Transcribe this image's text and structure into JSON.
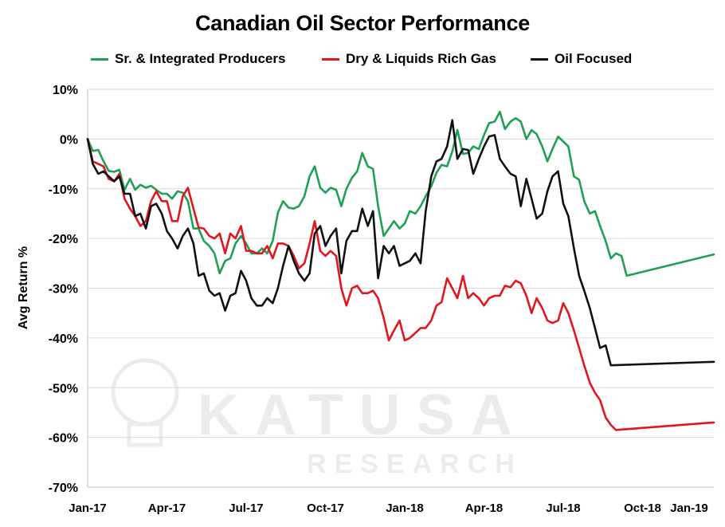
{
  "chart_data": {
    "type": "line",
    "title": "Canadian Oil Sector Performance",
    "ylabel": "Avg Return %",
    "xlabel": "",
    "ylim": [
      -70,
      10
    ],
    "yticks": [
      "10%",
      "0%",
      "-10%",
      "-20%",
      "-30%",
      "-40%",
      "-50%",
      "-60%",
      "-70%"
    ],
    "xticks": [
      "Jan-17",
      "Apr-17",
      "Jul-17",
      "Oct-17",
      "Jan-18",
      "Apr-18",
      "Jul-18",
      "Oct-18",
      "Jan-19"
    ],
    "grid": true,
    "legend_position": "top",
    "watermark": {
      "line1": "KATUSA",
      "line2": "RESEARCH"
    },
    "series": [
      {
        "name": "Sr. & Integrated Producers",
        "color": "#1fa055",
        "values": [
          [
            0,
            0
          ],
          [
            0.13,
            -2.4
          ],
          [
            0.27,
            -2.2
          ],
          [
            0.4,
            -4.5
          ],
          [
            0.53,
            -6.4
          ],
          [
            0.67,
            -6.6
          ],
          [
            0.8,
            -6.2
          ],
          [
            0.93,
            -10.2
          ],
          [
            1.07,
            -8
          ],
          [
            1.2,
            -10.2
          ],
          [
            1.33,
            -9.2
          ],
          [
            1.47,
            -9.8
          ],
          [
            1.6,
            -9.4
          ],
          [
            1.73,
            -10.2
          ],
          [
            1.87,
            -11
          ],
          [
            2,
            -11
          ],
          [
            2.13,
            -12
          ],
          [
            2.27,
            -10.5
          ],
          [
            2.4,
            -10.8
          ],
          [
            2.53,
            -12.5
          ],
          [
            2.67,
            -18
          ],
          [
            2.8,
            -18
          ],
          [
            2.93,
            -20.5
          ],
          [
            3.07,
            -21.5
          ],
          [
            3.2,
            -23
          ],
          [
            3.33,
            -27
          ],
          [
            3.47,
            -24.5
          ],
          [
            3.6,
            -24
          ],
          [
            3.73,
            -21
          ],
          [
            3.87,
            -19.5
          ],
          [
            4,
            -21
          ],
          [
            4.13,
            -23
          ],
          [
            4.27,
            -23
          ],
          [
            4.4,
            -22
          ],
          [
            4.53,
            -23
          ],
          [
            4.67,
            -20.5
          ],
          [
            4.8,
            -14.8
          ],
          [
            4.93,
            -12.5
          ],
          [
            5.07,
            -13.8
          ],
          [
            5.2,
            -14
          ],
          [
            5.33,
            -13.5
          ],
          [
            5.47,
            -11.5
          ],
          [
            5.6,
            -7.5
          ],
          [
            5.73,
            -5.5
          ],
          [
            5.87,
            -9.8
          ],
          [
            6,
            -10.8
          ],
          [
            6.13,
            -9.8
          ],
          [
            6.27,
            -10.2
          ],
          [
            6.4,
            -13.5
          ],
          [
            6.53,
            -10
          ],
          [
            6.67,
            -7.8
          ],
          [
            6.8,
            -6.5
          ],
          [
            6.93,
            -2.8
          ],
          [
            7.07,
            -5.5
          ],
          [
            7.2,
            -6
          ],
          [
            7.33,
            -13.5
          ],
          [
            7.47,
            -19.5
          ],
          [
            7.6,
            -18
          ],
          [
            7.73,
            -16.5
          ],
          [
            7.87,
            -18
          ],
          [
            8,
            -17
          ],
          [
            8.13,
            -14.5
          ],
          [
            8.27,
            -15
          ],
          [
            8.4,
            -13.5
          ],
          [
            8.53,
            -11.5
          ],
          [
            8.67,
            -9.5
          ],
          [
            8.8,
            -6.8
          ],
          [
            8.93,
            -5.2
          ],
          [
            9.07,
            -5.5
          ],
          [
            9.2,
            -2.5
          ],
          [
            9.33,
            1.8
          ],
          [
            9.47,
            -3
          ],
          [
            9.6,
            -2.8
          ],
          [
            9.73,
            -1.5
          ],
          [
            9.87,
            -2
          ],
          [
            10,
            0.8
          ],
          [
            10.13,
            3.2
          ],
          [
            10.27,
            3.5
          ],
          [
            10.4,
            5.5
          ],
          [
            10.53,
            2
          ],
          [
            10.67,
            3.5
          ],
          [
            10.8,
            4.2
          ],
          [
            10.93,
            3.5
          ],
          [
            11.07,
            0
          ],
          [
            11.2,
            1.8
          ],
          [
            11.33,
            1
          ],
          [
            11.47,
            -1.5
          ],
          [
            11.6,
            -4.5
          ],
          [
            11.73,
            -2
          ],
          [
            11.87,
            0.5
          ],
          [
            12,
            -0.5
          ],
          [
            12.13,
            -1.5
          ],
          [
            12.27,
            -7.5
          ],
          [
            12.4,
            -8.2
          ],
          [
            12.53,
            -12.5
          ],
          [
            12.67,
            -15
          ],
          [
            12.8,
            -14.5
          ],
          [
            12.93,
            -17.5
          ],
          [
            13.07,
            -20.5
          ],
          [
            13.2,
            -24
          ],
          [
            13.33,
            -23
          ],
          [
            13.47,
            -23.5
          ],
          [
            13.6,
            -27.5
          ],
          [
            15.8,
            -23.2
          ]
        ]
      },
      {
        "name": "Dry & Liquids Rich Gas",
        "color": "#e1161e",
        "values": [
          [
            0,
            0
          ],
          [
            0.13,
            -4.5
          ],
          [
            0.27,
            -5
          ],
          [
            0.4,
            -5.5
          ],
          [
            0.53,
            -8
          ],
          [
            0.67,
            -8.5
          ],
          [
            0.8,
            -7
          ],
          [
            0.93,
            -12
          ],
          [
            1.07,
            -14
          ],
          [
            1.2,
            -15.5
          ],
          [
            1.33,
            -17.5
          ],
          [
            1.47,
            -16.5
          ],
          [
            1.6,
            -12.5
          ],
          [
            1.73,
            -10.5
          ],
          [
            1.87,
            -12.5
          ],
          [
            2,
            -12.5
          ],
          [
            2.13,
            -16.5
          ],
          [
            2.27,
            -16.5
          ],
          [
            2.4,
            -11.5
          ],
          [
            2.53,
            -9.8
          ],
          [
            2.67,
            -14
          ],
          [
            2.8,
            -17.8
          ],
          [
            2.93,
            -18
          ],
          [
            3.07,
            -19.5
          ],
          [
            3.2,
            -20
          ],
          [
            3.33,
            -19
          ],
          [
            3.47,
            -23
          ],
          [
            3.6,
            -19
          ],
          [
            3.73,
            -20
          ],
          [
            3.87,
            -17.5
          ],
          [
            4,
            -22.5
          ],
          [
            4.13,
            -22.5
          ],
          [
            4.27,
            -23
          ],
          [
            4.4,
            -23
          ],
          [
            4.53,
            -21.5
          ],
          [
            4.67,
            -24
          ],
          [
            4.8,
            -21
          ],
          [
            4.93,
            -21
          ],
          [
            5.07,
            -21.5
          ],
          [
            5.2,
            -23.5
          ],
          [
            5.33,
            -26
          ],
          [
            5.47,
            -25
          ],
          [
            5.6,
            -21
          ],
          [
            5.73,
            -16.5
          ],
          [
            5.87,
            -22.5
          ],
          [
            6,
            -23.5
          ],
          [
            6.13,
            -22.5
          ],
          [
            6.27,
            -23.5
          ],
          [
            6.4,
            -30
          ],
          [
            6.53,
            -33.5
          ],
          [
            6.67,
            -30
          ],
          [
            6.8,
            -29.5
          ],
          [
            6.93,
            -31
          ],
          [
            7.07,
            -31
          ],
          [
            7.2,
            -30.5
          ],
          [
            7.33,
            -32
          ],
          [
            7.47,
            -36
          ],
          [
            7.6,
            -40.5
          ],
          [
            7.73,
            -38.5
          ],
          [
            7.87,
            -36.5
          ],
          [
            8,
            -40.5
          ],
          [
            8.13,
            -40
          ],
          [
            8.27,
            -39
          ],
          [
            8.4,
            -38
          ],
          [
            8.53,
            -38
          ],
          [
            8.67,
            -36.5
          ],
          [
            8.8,
            -33.5
          ],
          [
            8.93,
            -32.8
          ],
          [
            9.07,
            -28
          ],
          [
            9.2,
            -30
          ],
          [
            9.33,
            -32
          ],
          [
            9.47,
            -27.5
          ],
          [
            9.6,
            -32
          ],
          [
            9.73,
            -31
          ],
          [
            9.87,
            -32
          ],
          [
            10,
            -33.5
          ],
          [
            10.13,
            -32
          ],
          [
            10.27,
            -31.5
          ],
          [
            10.4,
            -31.5
          ],
          [
            10.53,
            -29.5
          ],
          [
            10.67,
            -29.8
          ],
          [
            10.8,
            -28.5
          ],
          [
            10.93,
            -29
          ],
          [
            11.07,
            -31.5
          ],
          [
            11.2,
            -35
          ],
          [
            11.33,
            -32
          ],
          [
            11.47,
            -34
          ],
          [
            11.6,
            -36.5
          ],
          [
            11.73,
            -37
          ],
          [
            11.87,
            -36.5
          ],
          [
            12,
            -33
          ],
          [
            12.13,
            -35
          ],
          [
            12.27,
            -38.5
          ],
          [
            12.4,
            -42
          ],
          [
            12.53,
            -45.5
          ],
          [
            12.67,
            -49
          ],
          [
            12.8,
            -51
          ],
          [
            12.93,
            -52.5
          ],
          [
            13.07,
            -56
          ],
          [
            13.2,
            -57.5
          ],
          [
            13.33,
            -58.5
          ],
          [
            15.8,
            -57
          ]
        ]
      },
      {
        "name": "Oil Focused",
        "color": "#111111",
        "values": [
          [
            0,
            0
          ],
          [
            0.13,
            -5
          ],
          [
            0.27,
            -7
          ],
          [
            0.4,
            -6.5
          ],
          [
            0.53,
            -7.5
          ],
          [
            0.67,
            -8.5
          ],
          [
            0.8,
            -7.5
          ],
          [
            0.93,
            -11
          ],
          [
            1.07,
            -11
          ],
          [
            1.2,
            -15.5
          ],
          [
            1.33,
            -15
          ],
          [
            1.47,
            -18
          ],
          [
            1.6,
            -13.5
          ],
          [
            1.73,
            -13
          ],
          [
            1.87,
            -15
          ],
          [
            2,
            -18.5
          ],
          [
            2.13,
            -20
          ],
          [
            2.27,
            -22
          ],
          [
            2.4,
            -19.5
          ],
          [
            2.53,
            -18
          ],
          [
            2.67,
            -21
          ],
          [
            2.8,
            -27.5
          ],
          [
            2.93,
            -27
          ],
          [
            3.07,
            -30.5
          ],
          [
            3.2,
            -31.5
          ],
          [
            3.33,
            -31
          ],
          [
            3.47,
            -34.5
          ],
          [
            3.6,
            -31.5
          ],
          [
            3.73,
            -31
          ],
          [
            3.87,
            -26.5
          ],
          [
            4,
            -28.5
          ],
          [
            4.13,
            -32
          ],
          [
            4.27,
            -33.5
          ],
          [
            4.4,
            -33.5
          ],
          [
            4.53,
            -32
          ],
          [
            4.67,
            -33
          ],
          [
            4.8,
            -30
          ],
          [
            4.93,
            -25.5
          ],
          [
            5.07,
            -21.5
          ],
          [
            5.2,
            -24.5
          ],
          [
            5.33,
            -27
          ],
          [
            5.47,
            -28.5
          ],
          [
            5.6,
            -27
          ],
          [
            5.73,
            -19
          ],
          [
            5.87,
            -17.5
          ],
          [
            6,
            -21.5
          ],
          [
            6.13,
            -19.5
          ],
          [
            6.27,
            -18
          ],
          [
            6.4,
            -27
          ],
          [
            6.53,
            -20.5
          ],
          [
            6.67,
            -18.5
          ],
          [
            6.8,
            -18.5
          ],
          [
            6.93,
            -14
          ],
          [
            7.07,
            -17.5
          ],
          [
            7.2,
            -14.5
          ],
          [
            7.33,
            -28
          ],
          [
            7.47,
            -21.5
          ],
          [
            7.6,
            -23
          ],
          [
            7.73,
            -21.5
          ],
          [
            7.87,
            -25.5
          ],
          [
            8,
            -25
          ],
          [
            8.13,
            -24.5
          ],
          [
            8.27,
            -23
          ],
          [
            8.4,
            -25
          ],
          [
            8.53,
            -14.5
          ],
          [
            8.67,
            -7.5
          ],
          [
            8.8,
            -4.5
          ],
          [
            8.93,
            -4
          ],
          [
            9.07,
            -1.5
          ],
          [
            9.2,
            3.8
          ],
          [
            9.33,
            -4
          ],
          [
            9.47,
            -2
          ],
          [
            9.6,
            -2.2
          ],
          [
            9.73,
            -7
          ],
          [
            9.87,
            -4
          ],
          [
            10,
            -1.5
          ],
          [
            10.13,
            0.5
          ],
          [
            10.27,
            0.8
          ],
          [
            10.4,
            -4
          ],
          [
            10.53,
            -5.5
          ],
          [
            10.67,
            -7
          ],
          [
            10.8,
            -7.5
          ],
          [
            10.93,
            -13.5
          ],
          [
            11.07,
            -8
          ],
          [
            11.2,
            -12
          ],
          [
            11.33,
            -16
          ],
          [
            11.47,
            -15
          ],
          [
            11.6,
            -10.5
          ],
          [
            11.73,
            -7.5
          ],
          [
            11.87,
            -6.5
          ],
          [
            12,
            -13
          ],
          [
            12.13,
            -15.5
          ],
          [
            12.27,
            -22
          ],
          [
            12.4,
            -27.5
          ],
          [
            12.53,
            -30.5
          ],
          [
            12.67,
            -34
          ],
          [
            12.8,
            -38
          ],
          [
            12.93,
            -42
          ],
          [
            13.07,
            -41.5
          ],
          [
            13.2,
            -45.5
          ],
          [
            15.8,
            -44.8
          ]
        ]
      }
    ]
  }
}
